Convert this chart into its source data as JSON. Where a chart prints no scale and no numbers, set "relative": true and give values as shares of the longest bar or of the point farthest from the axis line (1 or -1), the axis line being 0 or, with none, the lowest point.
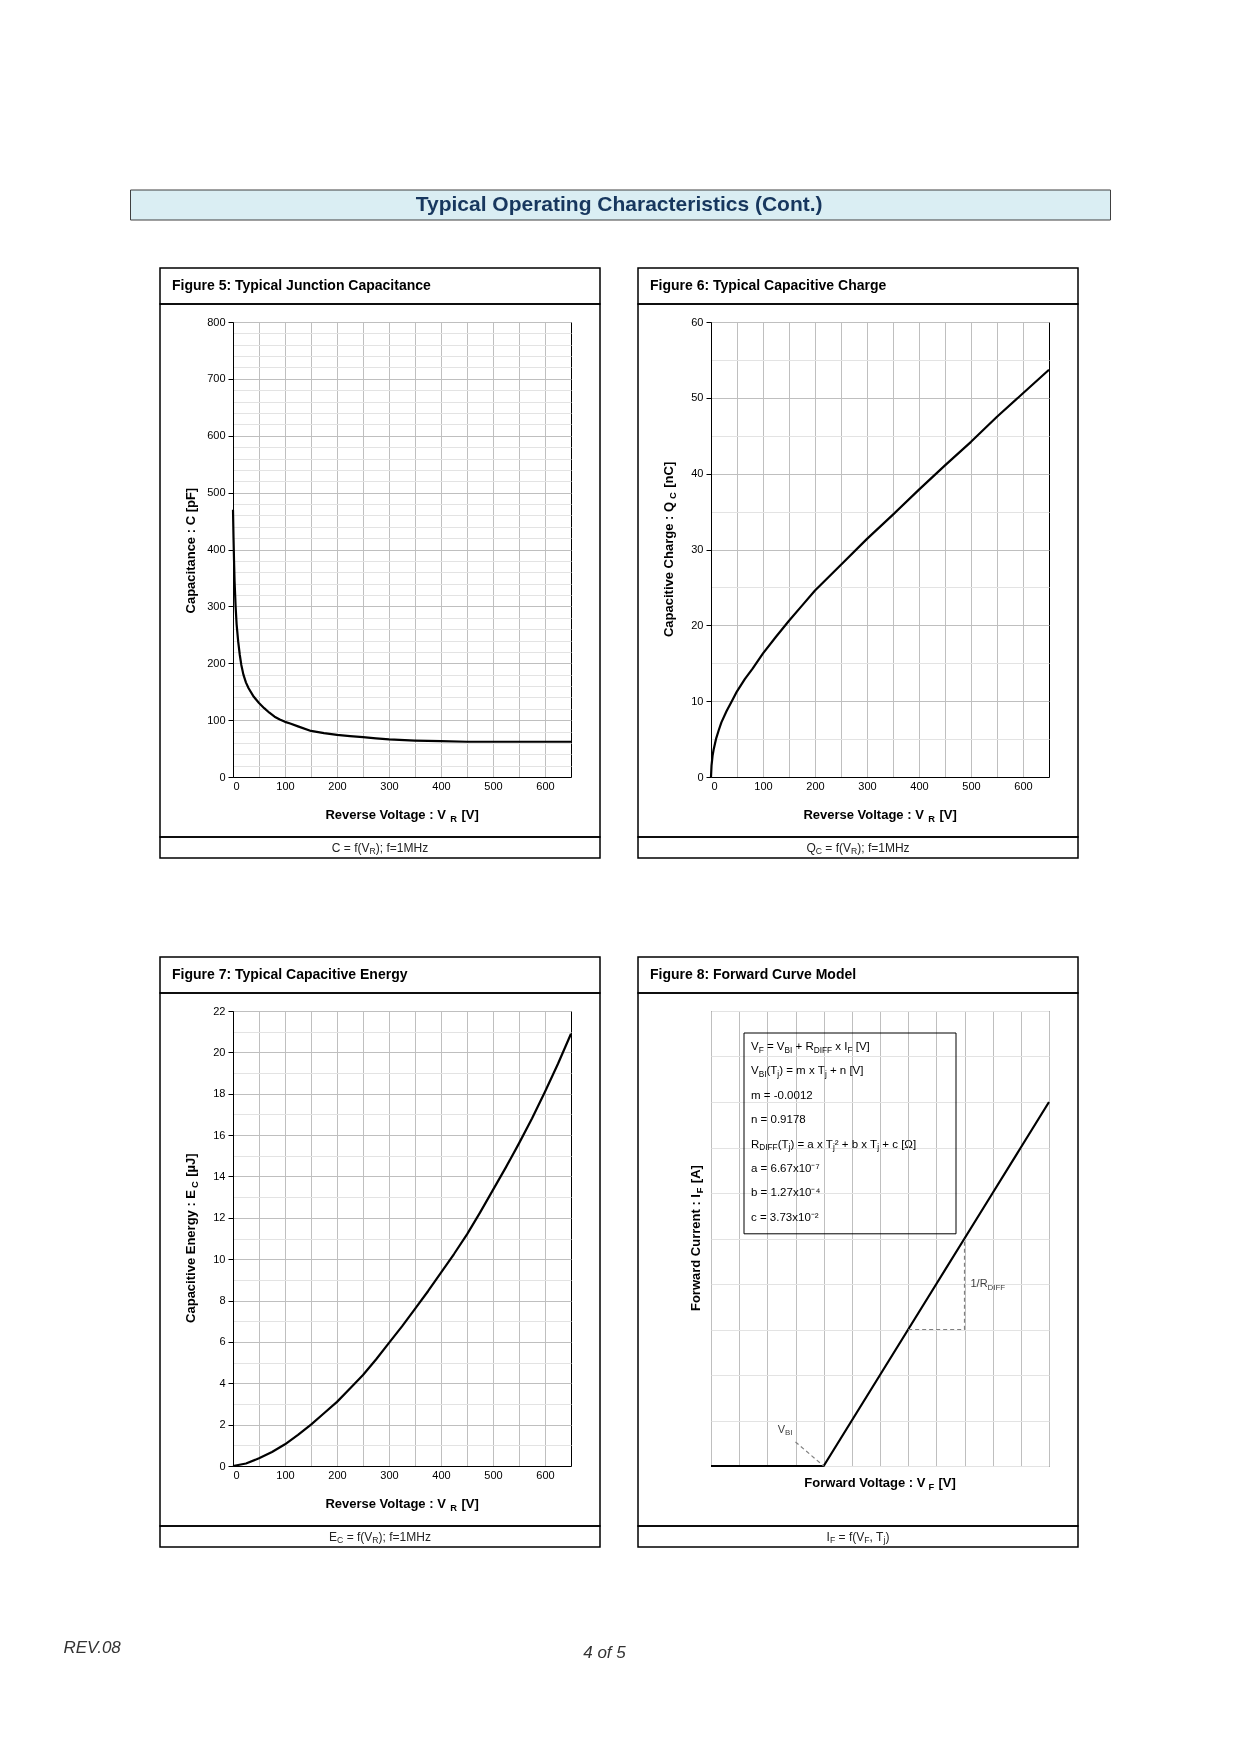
{
  "chart_data": [
    {
      "type": "other",
      "title": "Typical Operating Characteristics (Cont.)",
      "annotations": [
        "REV.08",
        "4 of 5"
      ]
    },
    {
      "type": "line",
      "title": "Figure 5: Typical Junction Capacitance",
      "xlabel": "Reverse Voltage : V$_{R}$ [V]",
      "ylabel": "Capacitance : C [pF]",
      "x": [
        0,
        1,
        2,
        3,
        5,
        7,
        10,
        13,
        16,
        20,
        25,
        30,
        40,
        50,
        60,
        70,
        80,
        90,
        100,
        110,
        125,
        150,
        175,
        200,
        225,
        250,
        275,
        300,
        350,
        400,
        450,
        500,
        650
      ],
      "series": [
        {
          "color": "#000000",
          "values": [
            470,
            420,
            380,
            345,
            300,
            268,
            238,
            215,
            197,
            180,
            166,
            156,
            141,
            130,
            121,
            113,
            106,
            101,
            97,
            94,
            89,
            81,
            77,
            74,
            72,
            70,
            68,
            66,
            64,
            63,
            62,
            62,
            62
          ]
        }
      ],
      "xlim": [
        0,
        650
      ],
      "xticks": [
        0,
        {
          "value": 50,
          "label": null
        },
        100,
        {
          "value": 150,
          "label": null
        },
        200,
        {
          "value": 250,
          "label": null
        },
        300,
        {
          "value": 350,
          "label": null
        },
        400,
        {
          "value": 450,
          "label": null
        },
        500,
        {
          "value": 550,
          "label": null
        },
        600
      ],
      "ylim": [
        0,
        800
      ],
      "yticks": [
        0,
        {
          "value": 20,
          "label": null
        },
        {
          "value": 40,
          "label": null
        },
        {
          "value": 60,
          "label": null
        },
        {
          "value": 80,
          "label": null
        },
        100,
        {
          "value": 120,
          "label": null
        },
        {
          "value": 140,
          "label": null
        },
        {
          "value": 160,
          "label": null
        },
        {
          "value": 180,
          "label": null
        },
        200,
        {
          "value": 220,
          "label": null
        },
        {
          "value": 240,
          "label": null
        },
        {
          "value": 260,
          "label": null
        },
        {
          "value": 280,
          "label": null
        },
        300,
        {
          "value": 320,
          "label": null
        },
        {
          "value": 340,
          "label": null
        },
        {
          "value": 360,
          "label": null
        },
        {
          "value": 380,
          "label": null
        },
        400,
        {
          "value": 420,
          "label": null
        },
        {
          "value": 440,
          "label": null
        },
        {
          "value": 460,
          "label": null
        },
        {
          "value": 480,
          "label": null
        },
        500,
        {
          "value": 520,
          "label": null
        },
        {
          "value": 540,
          "label": null
        },
        {
          "value": 560,
          "label": null
        },
        {
          "value": 580,
          "label": null
        },
        600,
        {
          "value": 620,
          "label": null
        },
        {
          "value": 640,
          "label": null
        },
        {
          "value": 660,
          "label": null
        },
        {
          "value": 680,
          "label": null
        },
        700,
        {
          "value": 720,
          "label": null
        },
        {
          "value": 740,
          "label": null
        },
        {
          "value": 760,
          "label": null
        },
        {
          "value": 780,
          "label": null
        },
        800
      ],
      "grid": true,
      "annotations": [
        "C = f(V$_{R}$); f=1MHz"
      ]
    },
    {
      "type": "line",
      "title": "Figure 6: Typical Capacitive Charge",
      "xlabel": "Reverse Voltage : V$_{R}$ [V]",
      "ylabel": "Capacitive Charge : Q$_{C}$ [nC]",
      "x": [
        0,
        1,
        3,
        5,
        10,
        15,
        20,
        30,
        40,
        50,
        65,
        80,
        100,
        125,
        150,
        175,
        200,
        250,
        300,
        350,
        400,
        450,
        500,
        550,
        600,
        650
      ],
      "series": [
        {
          "color": "#000000",
          "values": [
            0,
            1.5,
            2.8,
            3.6,
            5.1,
            6.2,
            7.2,
            8.7,
            10,
            11.3,
            12.9,
            14.3,
            16.3,
            18.5,
            20.6,
            22.6,
            24.6,
            28,
            31.4,
            34.6,
            37.9,
            41.1,
            44.2,
            47.5,
            50.6,
            53.7
          ]
        }
      ],
      "xlim": [
        0,
        650
      ],
      "xticks": [
        0,
        {
          "value": 50,
          "label": null
        },
        100,
        {
          "value": 150,
          "label": null
        },
        200,
        {
          "value": 250,
          "label": null
        },
        300,
        {
          "value": 350,
          "label": null
        },
        400,
        {
          "value": 450,
          "label": null
        },
        500,
        {
          "value": 550,
          "label": null
        },
        600
      ],
      "ylim": [
        0,
        60
      ],
      "yticks": [
        0,
        {
          "value": 5,
          "label": null
        },
        10,
        {
          "value": 15,
          "label": null
        },
        20,
        {
          "value": 25,
          "label": null
        },
        30,
        {
          "value": 35,
          "label": null
        },
        40,
        {
          "value": 45,
          "label": null
        },
        50,
        {
          "value": 55,
          "label": null
        },
        60
      ],
      "grid": true,
      "annotations": [
        "Q$_{C}$ = f(V$_{R}$); f=1MHz"
      ]
    },
    {
      "type": "line",
      "title": "Figure 7: Typical Capacitive Energy",
      "xlabel": "Reverse Voltage : V$_{R}$ [V]",
      "ylabel": "Capacitive Energy : E$_{C}$ [µJ]",
      "x": [
        0,
        25,
        50,
        75,
        100,
        125,
        150,
        175,
        200,
        225,
        250,
        275,
        300,
        325,
        350,
        375,
        400,
        425,
        450,
        475,
        500,
        525,
        550,
        575,
        600,
        625,
        650
      ],
      "series": [
        {
          "color": "#000000",
          "values": [
            0,
            0.12,
            0.37,
            0.68,
            1.05,
            1.5,
            2,
            2.55,
            3.1,
            3.75,
            4.4,
            5.15,
            5.95,
            6.75,
            7.6,
            8.45,
            9.35,
            10.25,
            11.2,
            12.25,
            13.35,
            14.45,
            15.6,
            16.8,
            18.1,
            19.45,
            20.9
          ]
        }
      ],
      "xlim": [
        0,
        650
      ],
      "xticks": [
        0,
        {
          "value": 50,
          "label": null
        },
        100,
        {
          "value": 150,
          "label": null
        },
        200,
        {
          "value": 250,
          "label": null
        },
        300,
        {
          "value": 350,
          "label": null
        },
        400,
        {
          "value": 450,
          "label": null
        },
        500,
        {
          "value": 550,
          "label": null
        },
        600
      ],
      "ylim": [
        0,
        22
      ],
      "yticks": [
        0,
        {
          "value": 1,
          "label": null
        },
        2,
        {
          "value": 3,
          "label": null
        },
        4,
        {
          "value": 5,
          "label": null
        },
        6,
        {
          "value": 7,
          "label": null
        },
        8,
        {
          "value": 9,
          "label": null
        },
        10,
        {
          "value": 11,
          "label": null
        },
        12,
        {
          "value": 13,
          "label": null
        },
        14,
        {
          "value": 15,
          "label": null
        },
        16,
        {
          "value": 17,
          "label": null
        },
        18,
        {
          "value": 19,
          "label": null
        },
        20,
        {
          "value": 21,
          "label": null
        },
        22
      ],
      "grid": true,
      "annotations": [
        "E$_{C}$ = f(V$_{R}$); f=1MHz"
      ]
    },
    {
      "type": "line",
      "title": "Figure 8: Forward Curve Model",
      "xlabel": "Forward Voltage : V$_{F}$ [V]",
      "ylabel": "Forward Current : I$_{F}$ [A]",
      "relative": true,
      "categories": [
        null,
        null,
        null,
        null,
        null,
        null,
        null,
        null,
        null,
        null,
        null,
        null,
        null
      ],
      "series": [
        {
          "color": "#000000",
          "values": [
            0,
            0,
            0,
            0,
            0,
            0.125,
            0.25,
            0.375,
            0.5,
            0.625,
            0.75,
            0.875,
            1
          ]
        },
        {
          "name": "1/R$_{DIFF}$",
          "type": "step",
          "color": "#808080",
          "line_style": "dashed",
          "values": [
            null,
            null,
            null,
            null,
            null,
            null,
            null,
            0.375,
            0.375,
            0.625,
            null,
            null,
            null
          ]
        },
        {
          "name": "V$_{BI}$",
          "type": "line",
          "color": "#808080",
          "line_style": "dashed",
          "values": [
            null,
            null,
            null,
            0.066,
            0,
            null,
            null,
            null,
            null,
            null,
            null,
            null,
            null
          ]
        }
      ],
      "grid": true,
      "annotations": [
        "I$_{F}$ = f(V$_{F}$, T$_{j}$)",
        "V$_{F}$ = V$_{BI}$ + R$_{DIFF}$ x I$_{F}$ [V]",
        "V$_{BI}$(T$_{j}$) = m x T$_{j}$ + n [V]",
        "m = -0.0012",
        "n = 0.9178",
        "R$_{DIFF}$(T$_{j}$) = a x T$_{j}$² + b x T$_{j}$ + c [Ω]",
        "a = 6.67x10⁻⁷",
        "b = 1.27x10⁻⁴",
        "c = 3.73x10⁻²"
      ]
    }
  ]
}
